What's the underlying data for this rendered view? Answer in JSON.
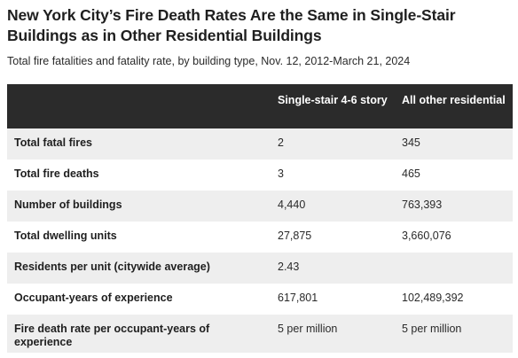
{
  "title": "New York City’s Fire Death Rates Are the Same in Single-Stair Buildings as in Other Residential Buildings",
  "subtitle": "Total fire fatalities and fatality rate, by building type, Nov. 12, 2012-March 21, 2024",
  "chart_data": {
    "type": "table",
    "title": "New York City’s Fire Death Rates Are the Same in Single-Stair Buildings as in Other Residential Buildings",
    "subtitle": "Total fire fatalities and fatality rate, by building type, Nov. 12, 2012-March 21, 2024",
    "columns": [
      "",
      "Single-stair 4-6 story",
      "All other residential"
    ],
    "rows": [
      {
        "label": "Total fatal fires",
        "single_stair": "2",
        "other": "345"
      },
      {
        "label": "Total fire deaths",
        "single_stair": "3",
        "other": "465"
      },
      {
        "label": "Number of buildings",
        "single_stair": "4,440",
        "other": "763,393"
      },
      {
        "label": "Total dwelling units",
        "single_stair": "27,875",
        "other": "3,660,076"
      },
      {
        "label": "Residents per unit (citywide average)",
        "single_stair": "2.43",
        "other": ""
      },
      {
        "label": "Occupant-years of experience",
        "single_stair": "617,801",
        "other": "102,489,392"
      },
      {
        "label": "Fire death rate per occupant-years of experience",
        "single_stair": "5 per million",
        "other": "5 per million"
      }
    ]
  }
}
